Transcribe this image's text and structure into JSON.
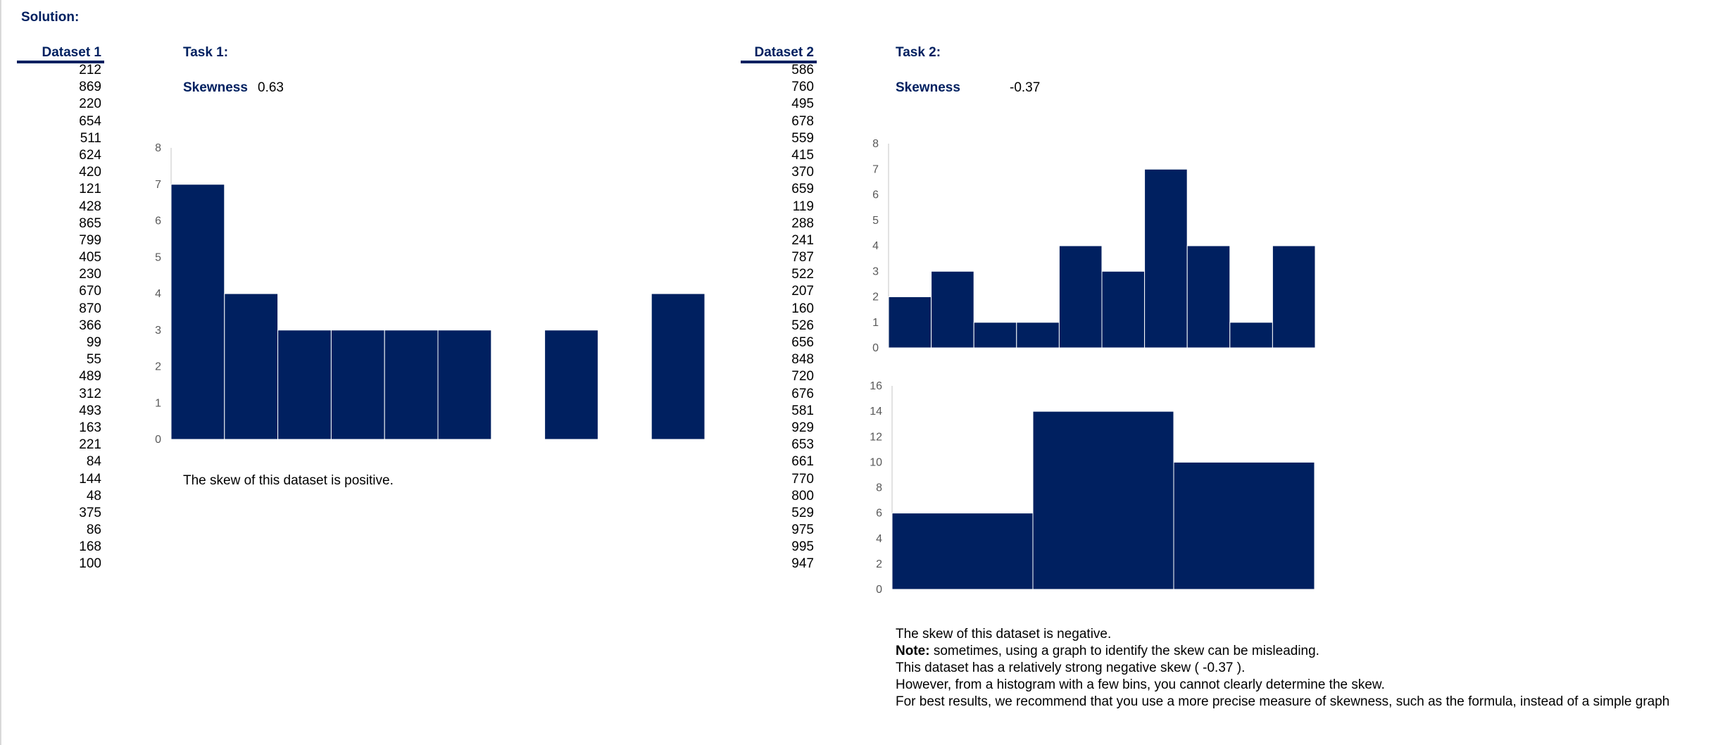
{
  "title": "Solution:",
  "dataset1": {
    "header": "Dataset 1",
    "values": [
      "212",
      "869",
      "220",
      "654",
      "511",
      "624",
      "420",
      "121",
      "428",
      "865",
      "799",
      "405",
      "230",
      "670",
      "870",
      "366",
      "99",
      "55",
      "489",
      "312",
      "493",
      "163",
      "221",
      "84",
      "144",
      "48",
      "375",
      "86",
      "168",
      "100"
    ]
  },
  "dataset2": {
    "header": "Dataset 2",
    "values": [
      "586",
      "760",
      "495",
      "678",
      "559",
      "415",
      "370",
      "659",
      "119",
      "288",
      "241",
      "787",
      "522",
      "207",
      "160",
      "526",
      "656",
      "848",
      "720",
      "676",
      "581",
      "929",
      "653",
      "661",
      "770",
      "800",
      "529",
      "975",
      "995",
      "947"
    ]
  },
  "task1": {
    "title": "Task 1:",
    "skew_label": "Skewness",
    "skew_value": "0.63",
    "conclusion": "The skew of this dataset is positive."
  },
  "task2": {
    "title": "Task 2:",
    "skew_label": "Skewness",
    "skew_value": "-0.37",
    "conclusion": "The skew of this dataset is negative.",
    "note_label": "Note:",
    "note_text": " sometimes, using a graph to identify the skew can be misleading.",
    "line3": "This dataset has a relatively strong negative skew ( -0.37 ).",
    "line4": "However, from a histogram with a few bins, you cannot clearly determine the skew.",
    "line5": "For best results, we recommend that you use a more precise measure of skewness, such as the formula, instead of a simple graph"
  },
  "colors": {
    "bar": "#002060",
    "header": "#002060",
    "axis": "#d9d9d9",
    "tick": "#595959"
  },
  "chart_data": [
    {
      "type": "bar",
      "categories": [
        "",
        "",
        "",
        "",
        "",
        "",
        "",
        "",
        "",
        ""
      ],
      "values": [
        7,
        4,
        3,
        3,
        3,
        3,
        0,
        3,
        0,
        4
      ],
      "ylim": [
        0,
        8
      ],
      "yticks": [
        "0",
        "1",
        "2",
        "3",
        "4",
        "5",
        "6",
        "7",
        "8"
      ],
      "title": "",
      "xlabel": "",
      "ylabel": ""
    },
    {
      "type": "bar",
      "categories": [
        "",
        "",
        "",
        "",
        "",
        "",
        "",
        "",
        "",
        ""
      ],
      "values": [
        2,
        3,
        1,
        1,
        4,
        3,
        7,
        4,
        1,
        4
      ],
      "ylim": [
        0,
        8
      ],
      "yticks": [
        "0",
        "1",
        "2",
        "3",
        "4",
        "5",
        "6",
        "7",
        "8"
      ],
      "title": "",
      "xlabel": "",
      "ylabel": ""
    },
    {
      "type": "bar",
      "categories": [
        "",
        "",
        ""
      ],
      "values": [
        6,
        14,
        10
      ],
      "ylim": [
        0,
        16
      ],
      "yticks": [
        "0",
        "2",
        "4",
        "6",
        "8",
        "10",
        "12",
        "14",
        "16"
      ],
      "title": "",
      "xlabel": "",
      "ylabel": ""
    }
  ]
}
